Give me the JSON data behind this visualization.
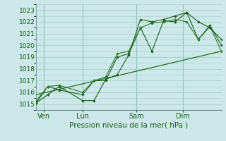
{
  "title": "",
  "xlabel": "Pression niveau de la mer( hPa )",
  "ylabel": "",
  "bg_color": "#cde8e8",
  "grid_color": "#aacece",
  "line_color": "#1a5c1a",
  "line_color2": "#2d7a2d",
  "xlim": [
    0,
    96
  ],
  "ylim": [
    1014.5,
    1023.5
  ],
  "yticks": [
    1015,
    1016,
    1017,
    1018,
    1019,
    1020,
    1021,
    1022,
    1023
  ],
  "xtick_positions": [
    4,
    24,
    52,
    76
  ],
  "xtick_labels": [
    "Ven",
    "Lun",
    "Sam",
    "Dim"
  ],
  "vlines": [
    4,
    24,
    52,
    76
  ],
  "series1_x": [
    0,
    6,
    12,
    24,
    30,
    36,
    42,
    48,
    54,
    60,
    66,
    72,
    78,
    84,
    90,
    96
  ],
  "series1_y": [
    1015.1,
    1015.8,
    1016.5,
    1015.3,
    1015.3,
    1017.1,
    1017.5,
    1019.2,
    1022.2,
    1022.0,
    1022.2,
    1022.5,
    1022.8,
    1022.0,
    1021.5,
    1020.5
  ],
  "series2_x": [
    0,
    6,
    12,
    24,
    30,
    36,
    42,
    48,
    54,
    60,
    66,
    72,
    78,
    84,
    90,
    96
  ],
  "series2_y": [
    1015.1,
    1016.5,
    1016.2,
    1015.8,
    1017.0,
    1017.0,
    1019.0,
    1019.3,
    1021.5,
    1019.5,
    1022.1,
    1022.0,
    1022.8,
    1020.5,
    1021.7,
    1020.0
  ],
  "series3_x": [
    0,
    96
  ],
  "series3_y": [
    1015.8,
    1019.5
  ],
  "series4_x": [
    0,
    6,
    12,
    24,
    30,
    36,
    42,
    48,
    54,
    60,
    66,
    72,
    78,
    84,
    90,
    96
  ],
  "series4_y": [
    1015.3,
    1016.5,
    1016.6,
    1016.0,
    1017.0,
    1017.3,
    1019.3,
    1019.5,
    1021.5,
    1021.9,
    1022.0,
    1022.2,
    1022.0,
    1020.5,
    1021.6,
    1019.5
  ]
}
